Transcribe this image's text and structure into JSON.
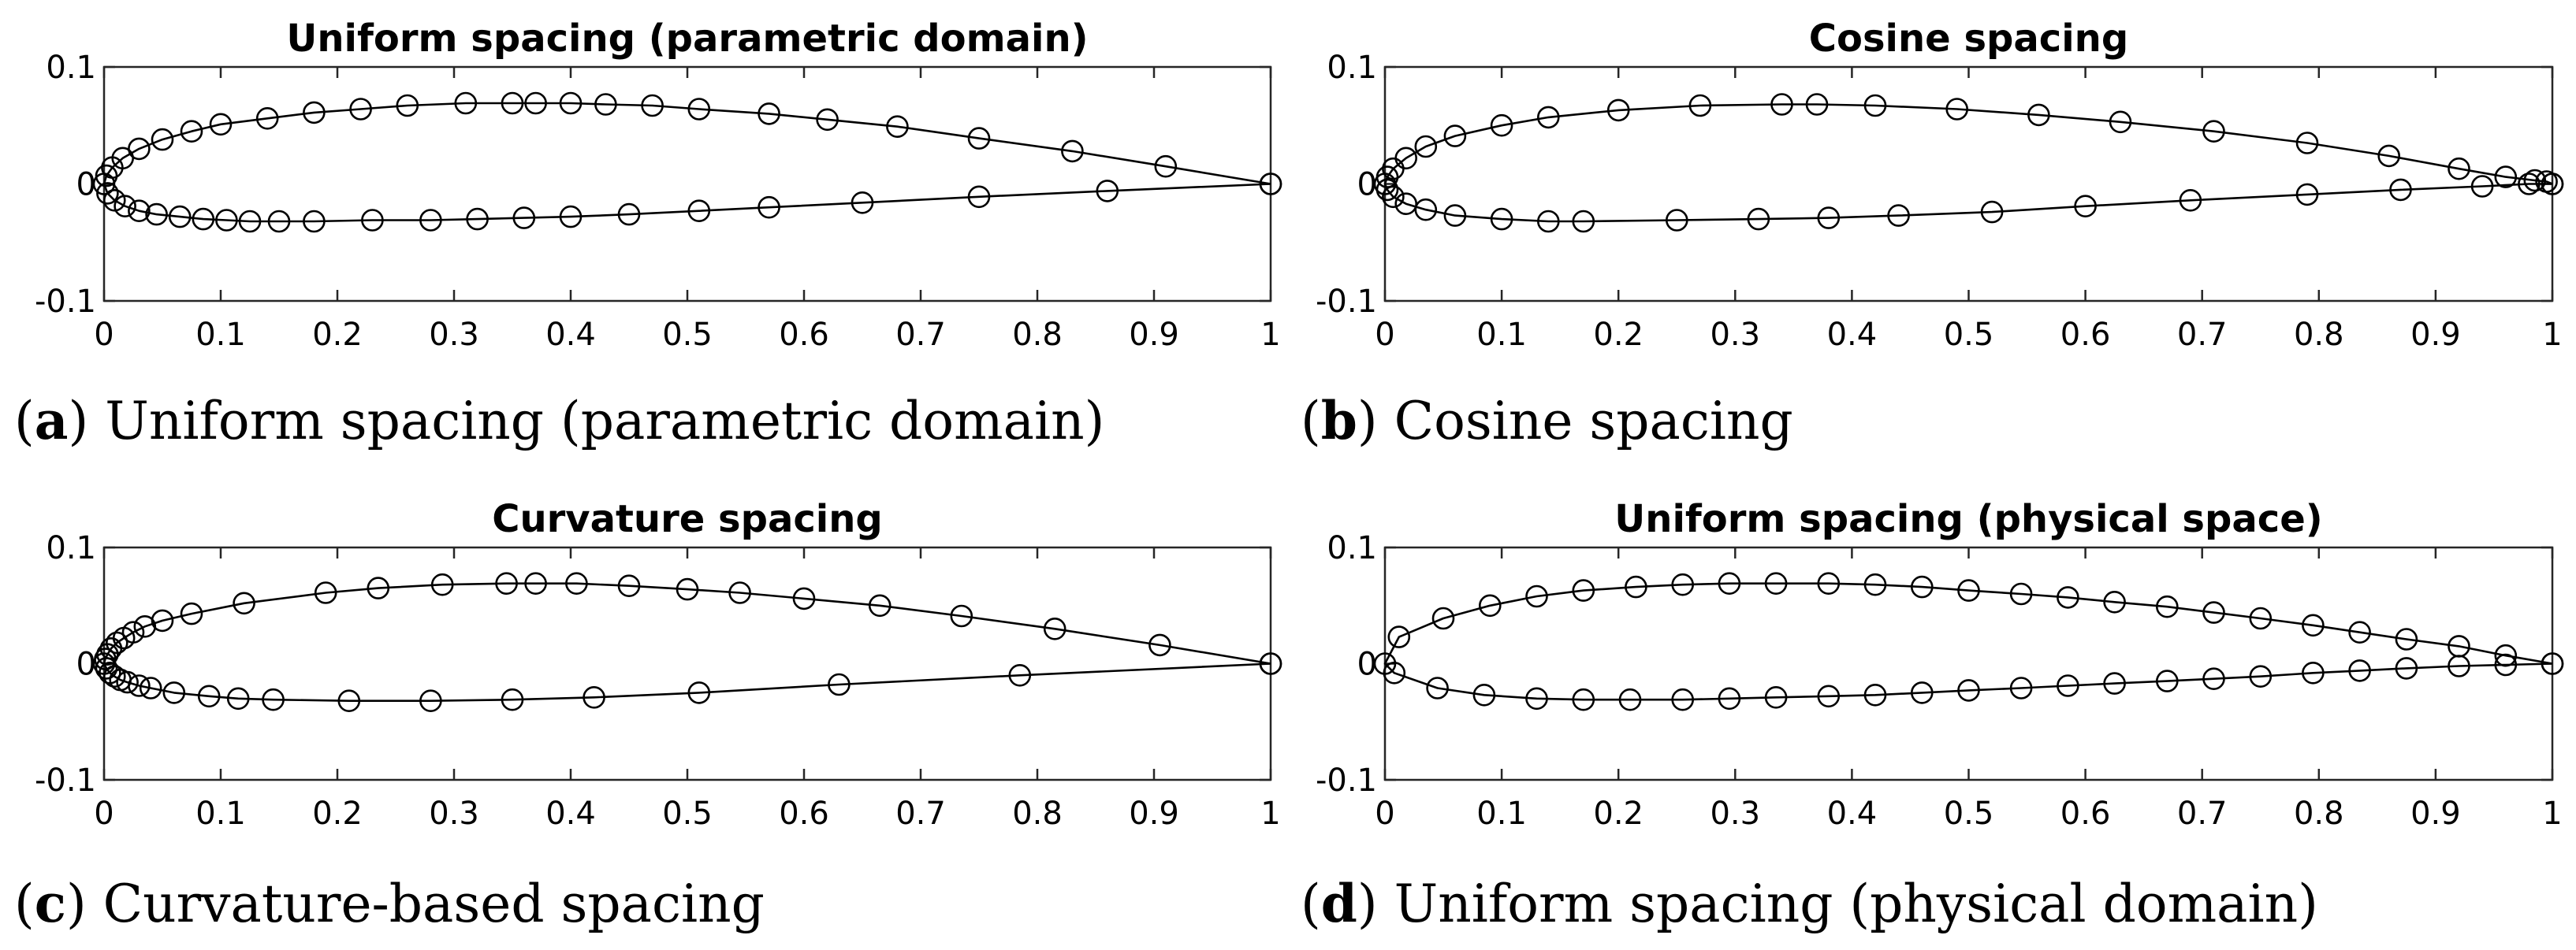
{
  "chart_data": [
    {
      "type": "line",
      "title": "Uniform spacing (parametric domain)",
      "caption_label": "a",
      "caption_text": "Uniform spacing (parametric domain)",
      "xlim": [
        0,
        1
      ],
      "ylim": [
        -0.1,
        0.1
      ],
      "xticks": [
        0,
        0.1,
        0.2,
        0.3,
        0.4,
        0.5,
        0.6,
        0.7,
        0.8,
        0.9,
        1
      ],
      "xtick_labels": [
        "0",
        "0.1",
        "0.2",
        "0.3",
        "0.4",
        "0.5",
        "0.6",
        "0.7",
        "0.8",
        "0.9",
        "1"
      ],
      "yticks": [
        -0.1,
        0,
        0.1
      ],
      "ytick_labels": [
        "-0.1",
        "0",
        "0.1"
      ],
      "grid": false,
      "series": [
        {
          "marker": "circle",
          "x": [
            1,
            0.91,
            0.83,
            0.75,
            0.68,
            0.62,
            0.57,
            0.51,
            0.47,
            0.43,
            0.4,
            0.37,
            0.35,
            0.31,
            0.26,
            0.22,
            0.18,
            0.14,
            0.1,
            0.075,
            0.05,
            0.03,
            0.016,
            0.007,
            0.002,
            0.0,
            0.003,
            0.009,
            0.018,
            0.03,
            0.045,
            0.065,
            0.085,
            0.105,
            0.125,
            0.15,
            0.18,
            0.23,
            0.28,
            0.32,
            0.36,
            0.4,
            0.45,
            0.51,
            0.57,
            0.65,
            0.75,
            0.86,
            1
          ],
          "y": [
            0,
            0.015,
            0.028,
            0.039,
            0.049,
            0.055,
            0.06,
            0.064,
            0.067,
            0.068,
            0.069,
            0.069,
            0.069,
            0.069,
            0.067,
            0.064,
            0.061,
            0.056,
            0.051,
            0.045,
            0.038,
            0.03,
            0.022,
            0.014,
            0.007,
            0.0,
            -0.008,
            -0.014,
            -0.019,
            -0.023,
            -0.026,
            -0.028,
            -0.03,
            -0.031,
            -0.032,
            -0.032,
            -0.032,
            -0.031,
            -0.031,
            -0.03,
            -0.029,
            -0.028,
            -0.026,
            -0.023,
            -0.02,
            -0.016,
            -0.011,
            -0.006,
            0
          ]
        }
      ]
    },
    {
      "type": "line",
      "title": "Cosine spacing",
      "caption_label": "b",
      "caption_text": "Cosine spacing",
      "xlim": [
        0,
        1
      ],
      "ylim": [
        -0.1,
        0.1
      ],
      "xticks": [
        0,
        0.1,
        0.2,
        0.3,
        0.4,
        0.5,
        0.6,
        0.7,
        0.8,
        0.9,
        1
      ],
      "xtick_labels": [
        "0",
        "0.1",
        "0.2",
        "0.3",
        "0.4",
        "0.5",
        "0.6",
        "0.7",
        "0.8",
        "0.9",
        "1"
      ],
      "yticks": [
        -0.1,
        0,
        0.1
      ],
      "ytick_labels": [
        "-0.1",
        "0",
        "0.1"
      ],
      "grid": false,
      "series": [
        {
          "marker": "circle",
          "x": [
            1,
            0.995,
            0.985,
            0.96,
            0.92,
            0.86,
            0.79,
            0.71,
            0.63,
            0.56,
            0.49,
            0.42,
            0.37,
            0.34,
            0.27,
            0.2,
            0.14,
            0.1,
            0.06,
            0.035,
            0.018,
            0.007,
            0.002,
            0.0,
            0.002,
            0.007,
            0.018,
            0.035,
            0.06,
            0.1,
            0.14,
            0.17,
            0.25,
            0.32,
            0.38,
            0.44,
            0.52,
            0.6,
            0.69,
            0.79,
            0.87,
            0.94,
            0.98,
            1
          ],
          "y": [
            0,
            0.002,
            0.003,
            0.006,
            0.013,
            0.024,
            0.035,
            0.045,
            0.053,
            0.059,
            0.064,
            0.067,
            0.068,
            0.068,
            0.067,
            0.063,
            0.057,
            0.05,
            0.041,
            0.032,
            0.022,
            0.013,
            0.006,
            0.0,
            -0.005,
            -0.011,
            -0.017,
            -0.022,
            -0.027,
            -0.03,
            -0.032,
            -0.032,
            -0.031,
            -0.03,
            -0.029,
            -0.027,
            -0.024,
            -0.019,
            -0.014,
            -0.009,
            -0.005,
            -0.002,
            0.0,
            0
          ]
        }
      ]
    },
    {
      "type": "line",
      "title": "Curvature spacing",
      "caption_label": "c",
      "caption_text": "Curvature-based spacing",
      "xlim": [
        0,
        1
      ],
      "ylim": [
        -0.1,
        0.1
      ],
      "xticks": [
        0,
        0.1,
        0.2,
        0.3,
        0.4,
        0.5,
        0.6,
        0.7,
        0.8,
        0.9,
        1
      ],
      "xtick_labels": [
        "0",
        "0.1",
        "0.2",
        "0.3",
        "0.4",
        "0.5",
        "0.6",
        "0.7",
        "0.8",
        "0.9",
        "1"
      ],
      "yticks": [
        -0.1,
        0,
        0.1
      ],
      "ytick_labels": [
        "-0.1",
        "0",
        "0.1"
      ],
      "grid": false,
      "series": [
        {
          "marker": "circle",
          "x": [
            1,
            0.905,
            0.815,
            0.735,
            0.665,
            0.6,
            0.545,
            0.5,
            0.45,
            0.405,
            0.37,
            0.345,
            0.29,
            0.235,
            0.19,
            0.12,
            0.075,
            0.05,
            0.035,
            0.025,
            0.017,
            0.011,
            0.006,
            0.003,
            0.001,
            0.0,
            0.002,
            0.005,
            0.009,
            0.014,
            0.02,
            0.03,
            0.04,
            0.06,
            0.09,
            0.115,
            0.145,
            0.21,
            0.28,
            0.35,
            0.42,
            0.51,
            0.63,
            0.785,
            1
          ],
          "y": [
            0,
            0.016,
            0.03,
            0.041,
            0.05,
            0.056,
            0.061,
            0.064,
            0.067,
            0.069,
            0.069,
            0.069,
            0.068,
            0.065,
            0.061,
            0.052,
            0.043,
            0.037,
            0.032,
            0.027,
            0.022,
            0.018,
            0.013,
            0.008,
            0.004,
            0.0,
            -0.004,
            -0.008,
            -0.011,
            -0.014,
            -0.016,
            -0.019,
            -0.021,
            -0.025,
            -0.028,
            -0.03,
            -0.031,
            -0.032,
            -0.032,
            -0.031,
            -0.029,
            -0.025,
            -0.018,
            -0.01,
            0
          ]
        }
      ]
    },
    {
      "type": "line",
      "title": "Uniform spacing (physical space)",
      "caption_label": "d",
      "caption_text": "Uniform spacing (physical domain)",
      "xlim": [
        0,
        1
      ],
      "ylim": [
        -0.1,
        0.1
      ],
      "xticks": [
        0,
        0.1,
        0.2,
        0.3,
        0.4,
        0.5,
        0.6,
        0.7,
        0.8,
        0.9,
        1
      ],
      "xtick_labels": [
        "0",
        "0.1",
        "0.2",
        "0.3",
        "0.4",
        "0.5",
        "0.6",
        "0.7",
        "0.8",
        "0.9",
        "1"
      ],
      "yticks": [
        -0.1,
        0,
        0.1
      ],
      "ytick_labels": [
        "-0.1",
        "0",
        "0.1"
      ],
      "grid": false,
      "series": [
        {
          "marker": "circle",
          "x": [
            1,
            0.96,
            0.92,
            0.875,
            0.835,
            0.795,
            0.75,
            0.71,
            0.67,
            0.625,
            0.585,
            0.545,
            0.5,
            0.46,
            0.42,
            0.38,
            0.335,
            0.295,
            0.255,
            0.215,
            0.17,
            0.13,
            0.09,
            0.05,
            0.012,
            0.0,
            0.008,
            0.045,
            0.085,
            0.13,
            0.17,
            0.21,
            0.255,
            0.295,
            0.335,
            0.38,
            0.42,
            0.46,
            0.5,
            0.545,
            0.585,
            0.625,
            0.67,
            0.71,
            0.75,
            0.795,
            0.835,
            0.875,
            0.92,
            0.96,
            1
          ],
          "y": [
            0,
            0.007,
            0.015,
            0.021,
            0.027,
            0.033,
            0.039,
            0.044,
            0.049,
            0.053,
            0.057,
            0.06,
            0.063,
            0.066,
            0.068,
            0.069,
            0.069,
            0.069,
            0.068,
            0.066,
            0.063,
            0.058,
            0.05,
            0.039,
            0.023,
            0.0,
            -0.008,
            -0.021,
            -0.027,
            -0.03,
            -0.031,
            -0.031,
            -0.031,
            -0.03,
            -0.029,
            -0.028,
            -0.027,
            -0.025,
            -0.023,
            -0.021,
            -0.019,
            -0.017,
            -0.015,
            -0.013,
            -0.011,
            -0.008,
            -0.006,
            -0.004,
            -0.002,
            -0.001,
            0
          ]
        }
      ]
    }
  ]
}
